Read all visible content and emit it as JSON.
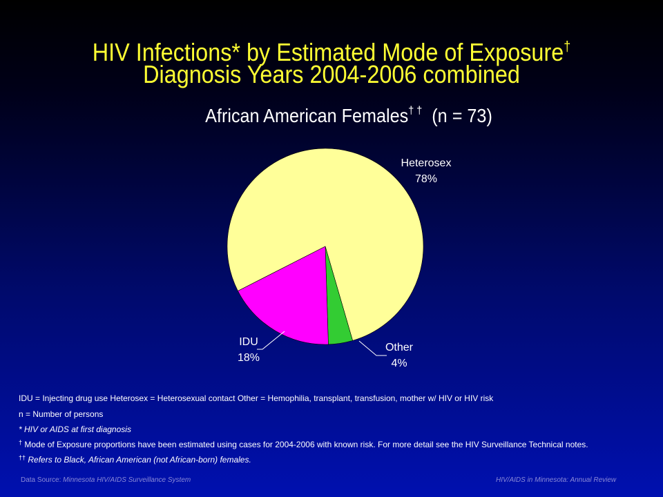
{
  "title": {
    "line1": "HIV Infections* by Estimated Mode of Exposure",
    "line1_mark": "†",
    "line2": "Diagnosis Years 2004-2006 combined"
  },
  "subtitle": {
    "text": "African American Females",
    "mark": "† †",
    "count": "(n = 73)"
  },
  "chart_data": {
    "type": "pie",
    "start_angle_deg": 153,
    "slices": [
      {
        "label": "Heterosex",
        "value": 78,
        "display": "78%",
        "color": "#ffff99"
      },
      {
        "label": "Other",
        "value": 4,
        "display": "4%",
        "color": "#33cc33"
      },
      {
        "label": "IDU",
        "value": 18,
        "display": "18%",
        "color": "#ff00ff"
      }
    ]
  },
  "notes": {
    "definitions": "IDU = Injecting drug use     Heterosex = Heterosexual contact   Other = Hemophilia, transplant, transfusion, mother w/ HIV or HIV risk",
    "n_def": "n = Number of persons",
    "asterisk": "* HIV or AIDS at first diagnosis",
    "dagger_mark": "†",
    "dagger": "Mode of Exposure proportions have been estimated using cases for 2004-2006  with known risk. For more detail see the HIV Surveillance Technical notes.",
    "double_dagger_mark": "††",
    "double_dagger": "Refers to Black, African American (not African-born)  females."
  },
  "footer": {
    "source_prefix": "Data Source: ",
    "source": "Minnesota HIV/AIDS Surveillance  System",
    "right": "HIV/AIDS in Minnesota: Annual Review"
  }
}
